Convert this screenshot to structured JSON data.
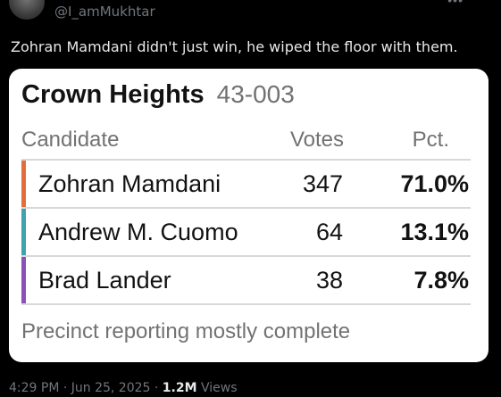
{
  "tweet": {
    "handle": "@I_amMukhtar",
    "text": "Zohran Mamdani didn't just win, he wiped the floor with them.",
    "timestamp": "4:29 PM · Jun 25, 2025 · ",
    "views_count": "1.2M",
    "views_label": " Views",
    "more_icon": "more-icon"
  },
  "card": {
    "place": "Crown Heights",
    "precinct": "43-003",
    "headers": {
      "candidate": "Candidate",
      "votes": "Votes",
      "pct": "Pct."
    },
    "rows": [
      {
        "name": "Zohran Mamdani",
        "votes": "347",
        "pct": "71.0%",
        "color": "#e36e3a"
      },
      {
        "name": "Andrew M. Cuomo",
        "votes": "64",
        "pct": "13.1%",
        "color": "#3ea3ad"
      },
      {
        "name": "Brad Lander",
        "votes": "38",
        "pct": "7.8%",
        "color": "#8a52b8"
      }
    ],
    "footnote": "Precinct reporting mostly complete"
  }
}
